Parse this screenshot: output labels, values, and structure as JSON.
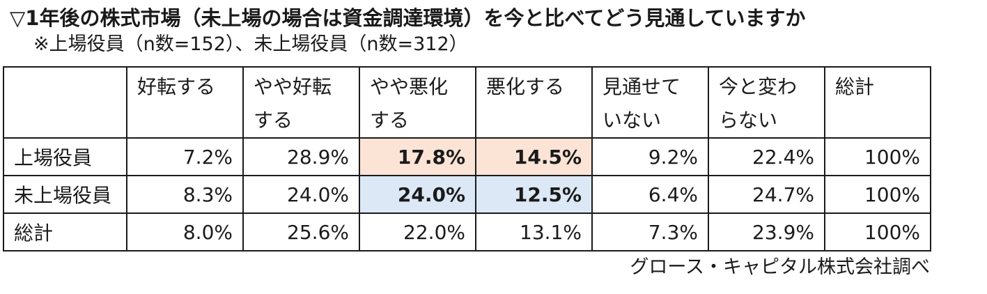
{
  "title": "▽1年後の株式市場（未上場の場合は資金調達環境）を今と比べてどう見通していますか",
  "subtitle": "※上場役員（n数=152）、未上場役員（n数=312）",
  "colors": {
    "highlight_listed": "#fbe3d6",
    "highlight_unlisted": "#dce8f5"
  },
  "table": {
    "header_corner": "",
    "columns": [
      {
        "line1": "好転する",
        "line2": ""
      },
      {
        "line1": "やや好転",
        "line2": "する"
      },
      {
        "line1": "やや悪化",
        "line2": "する"
      },
      {
        "line1": "悪化する",
        "line2": ""
      },
      {
        "line1": "見通せて",
        "line2": "いない"
      },
      {
        "line1": "今と変わ",
        "line2": "らない"
      },
      {
        "line1": "総計",
        "line2": ""
      }
    ],
    "rows": [
      {
        "label": "上場役員",
        "cells": [
          {
            "value": "7.2%",
            "bold": false,
            "highlight": ""
          },
          {
            "value": "28.9%",
            "bold": false,
            "highlight": ""
          },
          {
            "value": "17.8%",
            "bold": true,
            "highlight": "highlight_listed"
          },
          {
            "value": "14.5%",
            "bold": true,
            "highlight": "highlight_listed"
          },
          {
            "value": "9.2%",
            "bold": false,
            "highlight": ""
          },
          {
            "value": "22.4%",
            "bold": false,
            "highlight": ""
          },
          {
            "value": "100%",
            "bold": false,
            "highlight": ""
          }
        ]
      },
      {
        "label": "未上場役員",
        "cells": [
          {
            "value": "8.3%",
            "bold": false,
            "highlight": ""
          },
          {
            "value": "24.0%",
            "bold": false,
            "highlight": ""
          },
          {
            "value": "24.0%",
            "bold": true,
            "highlight": "highlight_unlisted"
          },
          {
            "value": "12.5%",
            "bold": true,
            "highlight": "highlight_unlisted"
          },
          {
            "value": "6.4%",
            "bold": false,
            "highlight": ""
          },
          {
            "value": "24.7%",
            "bold": false,
            "highlight": ""
          },
          {
            "value": "100%",
            "bold": false,
            "highlight": ""
          }
        ]
      },
      {
        "label": "総計",
        "cells": [
          {
            "value": "8.0%",
            "bold": false,
            "highlight": ""
          },
          {
            "value": "25.6%",
            "bold": false,
            "highlight": ""
          },
          {
            "value": "22.0%",
            "bold": false,
            "highlight": ""
          },
          {
            "value": "13.1%",
            "bold": false,
            "highlight": ""
          },
          {
            "value": "7.3%",
            "bold": false,
            "highlight": ""
          },
          {
            "value": "23.9%",
            "bold": false,
            "highlight": ""
          },
          {
            "value": "100%",
            "bold": false,
            "highlight": ""
          }
        ]
      }
    ]
  },
  "source": "グロース・キャピタル株式会社調べ"
}
